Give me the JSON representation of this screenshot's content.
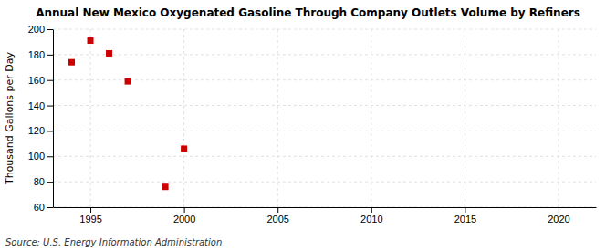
{
  "chart_data": {
    "type": "scatter",
    "title": "Annual New Mexico Oxygenated Gasoline Through Company Outlets Volume by Refiners",
    "ylabel": "Thousand Gallons per Day",
    "source": "Source: U.S. Energy Information Administration",
    "x": [
      1994,
      1995,
      1996,
      1997,
      1999,
      2000
    ],
    "values": [
      174,
      191,
      181,
      159,
      76,
      106
    ],
    "color": "#cc0000",
    "marker": "square",
    "xlim": [
      1993,
      2022
    ],
    "ylim": [
      60,
      200
    ],
    "xticks": [
      1995,
      2000,
      2005,
      2010,
      2015,
      2020
    ],
    "yticks": [
      60,
      80,
      100,
      120,
      140,
      160,
      180,
      200
    ],
    "grid": true
  }
}
